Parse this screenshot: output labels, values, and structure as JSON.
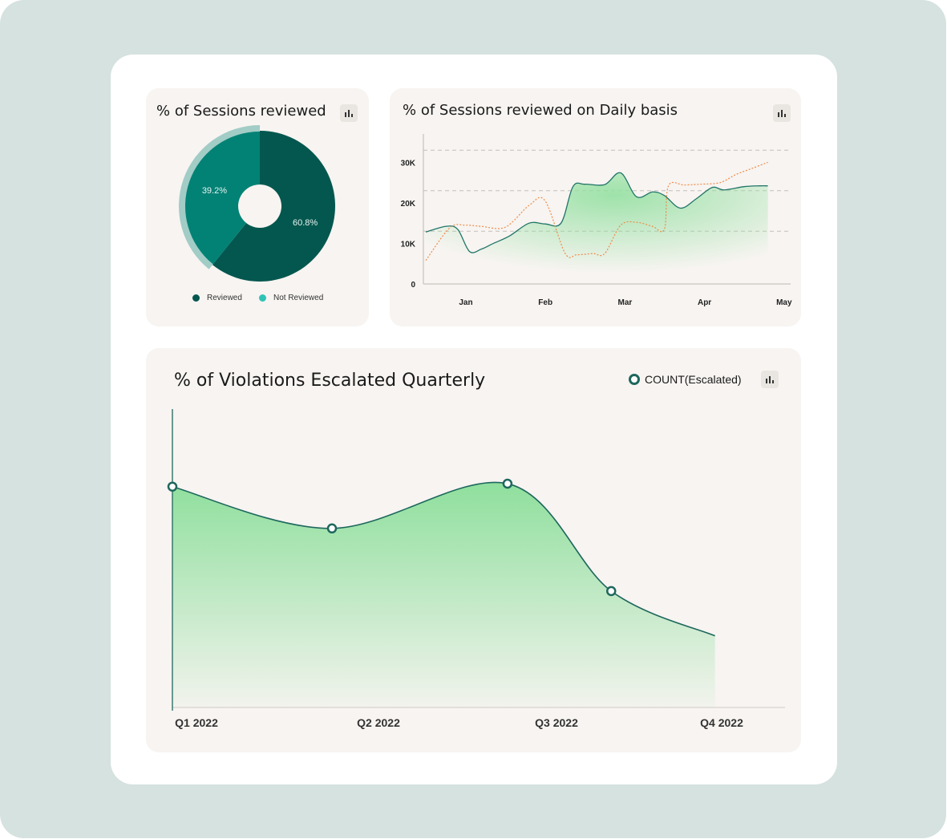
{
  "cards": {
    "pie_title": "% of Sessions reviewed",
    "line_title": "% of Sessions reviewed on Daily basis",
    "area_title": "% of Violations Escalated Quarterly"
  },
  "icons": {
    "chart_button": "bar-chart-icon"
  },
  "colors": {
    "page_bg": "#d5e2df",
    "card_bg": "#f7f4f1",
    "reviewed": "#04574f",
    "not_reviewed": "#028275",
    "not_reviewed_legend": "#2fc3b6",
    "line_primary": "#217468",
    "line_secondary": "#f08b48",
    "area_fill": "#8fdf9d",
    "point_stroke": "#1e675d"
  },
  "chart_data": [
    {
      "type": "pie",
      "title": "% of Sessions reviewed",
      "donut": true,
      "slices": [
        {
          "label": "Reviewed",
          "value": 60.8,
          "display": "60.8%",
          "color": "#04574f"
        },
        {
          "label": "Not Reviewed",
          "value": 39.2,
          "display": "39.2%",
          "color": "#028275"
        }
      ],
      "legend": [
        "Reviewed",
        "Not Reviewed"
      ],
      "legend_position": "bottom"
    },
    {
      "type": "line",
      "title": "% of Sessions reviewed on Daily basis",
      "x_ticks": [
        "Jan",
        "Feb",
        "Mar",
        "Apr",
        "May"
      ],
      "y_ticks": [
        "0",
        "10K",
        "20K",
        "30K"
      ],
      "y_tick_values": [
        0,
        10000,
        20000,
        30000
      ],
      "ylim": [
        0,
        37000
      ],
      "grid": "dashed-horizontal",
      "series": [
        {
          "style": "solid",
          "color": "#217468",
          "area_fill": true,
          "x": [
            0.5,
            0.75,
            0.9,
            1.05,
            1.2,
            1.35,
            1.55,
            1.8,
            2.0,
            2.2,
            2.35,
            2.5,
            2.75,
            2.95,
            3.15,
            3.35,
            3.5,
            3.7,
            3.9,
            4.1,
            4.25,
            4.5,
            4.7,
            4.8
          ],
          "y": [
            12800,
            14200,
            13500,
            8000,
            8600,
            10000,
            11800,
            15000,
            14800,
            15000,
            24000,
            24600,
            24500,
            27400,
            21500,
            22700,
            21800,
            18700,
            21000,
            23800,
            23200,
            24000,
            24200,
            24200
          ]
        },
        {
          "style": "dashed",
          "color": "#f08b48",
          "x": [
            0.5,
            0.8,
            1.0,
            1.2,
            1.5,
            1.8,
            2.0,
            2.25,
            2.4,
            2.6,
            2.75,
            2.95,
            3.15,
            3.35,
            3.5,
            3.55,
            3.75,
            3.95,
            4.2,
            4.4,
            4.6,
            4.8
          ],
          "y": [
            5800,
            13800,
            14500,
            14200,
            14000,
            19400,
            20500,
            7600,
            7200,
            7500,
            7500,
            14500,
            15200,
            14200,
            13500,
            24200,
            24400,
            24600,
            25000,
            27000,
            28500,
            30000
          ]
        }
      ]
    },
    {
      "type": "area",
      "title": "% of Violations Escalated Quarterly",
      "legend": [
        "COUNT(Escalated)"
      ],
      "legend_position": "top-right",
      "categories": [
        "Q1 2022",
        "Q2 2022",
        "Q3 2022",
        "Q4 2022"
      ],
      "series": [
        {
          "name": "COUNT(Escalated)",
          "x": [
            0,
            1,
            2.1,
            2.75,
            3.4
          ],
          "y": [
            74,
            60,
            75,
            39,
            24
          ],
          "marked": [
            true,
            true,
            true,
            true,
            false
          ]
        }
      ],
      "ylim": [
        0,
        100
      ]
    }
  ]
}
